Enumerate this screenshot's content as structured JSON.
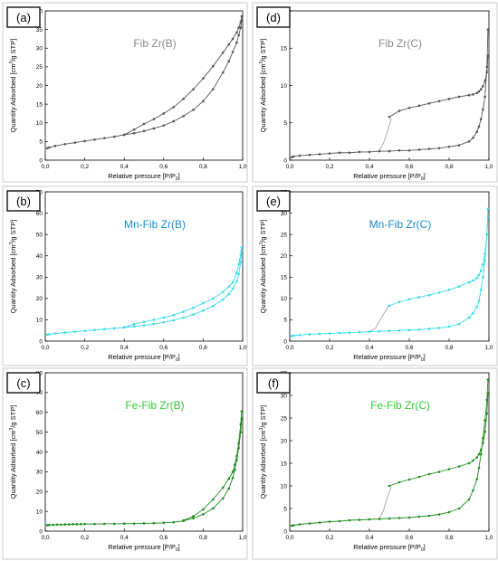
{
  "colors": {
    "a": "#555555",
    "b": "#33dde8",
    "c": "#1e8c1e",
    "d": "#555555",
    "e": "#33dde8",
    "f": "#1e8c1e",
    "title_a": "#8a8a8a",
    "title_b": "#1a8ccc",
    "title_c": "#33cc33",
    "axis": "#000000",
    "guide": "#a0a0a0"
  },
  "xlabel_main": "Relative pressure [P/P",
  "xlabel_sub": "0",
  "xlabel_end": "]",
  "ylabel_a": "Quantity Adsorbed [cm",
  "ylabel_b": "3",
  "ylabel_c": "/g STP]",
  "chart_data": [
    {
      "id": "a",
      "type": "line",
      "panel_label": "(a)",
      "title": "Fib Zr(B)",
      "xlim": [
        0,
        1.0
      ],
      "ylim": [
        0,
        40
      ],
      "xticks": [
        "0,0",
        "0,2",
        "0,4",
        "0,6",
        "0,8",
        "1,0"
      ],
      "yticks": [
        "0",
        "5",
        "10",
        "15",
        "20",
        "25",
        "30",
        "35",
        "40"
      ],
      "series": [
        {
          "x": [
            0.01,
            0.02,
            0.05,
            0.1,
            0.15,
            0.2,
            0.25,
            0.3,
            0.35,
            0.4,
            0.45,
            0.5,
            0.55,
            0.6,
            0.65,
            0.7,
            0.75,
            0.8,
            0.85,
            0.9,
            0.93,
            0.95,
            0.97,
            0.98,
            0.99,
            0.995
          ],
          "y": [
            3.2,
            3.4,
            3.8,
            4.3,
            4.7,
            5.1,
            5.5,
            5.9,
            6.3,
            6.8,
            7.2,
            7.8,
            8.5,
            9.3,
            10.4,
            11.8,
            13.5,
            15.8,
            19.0,
            23.5,
            26.5,
            29.0,
            31.5,
            33.5,
            35.5,
            37.5
          ]
        },
        {
          "x": [
            0.995,
            0.99,
            0.98,
            0.97,
            0.95,
            0.93,
            0.9,
            0.85,
            0.8,
            0.75,
            0.7,
            0.65,
            0.6,
            0.55,
            0.5,
            0.45,
            0.4
          ],
          "y": [
            38.5,
            37.0,
            35.5,
            34.2,
            32.5,
            31.0,
            28.8,
            25.2,
            21.9,
            19.0,
            16.4,
            14.2,
            12.5,
            11.0,
            9.7,
            8.2,
            6.8
          ]
        }
      ]
    },
    {
      "id": "b",
      "type": "line",
      "panel_label": "(b)",
      "title": "Mn-Fib Zr(B)",
      "xlim": [
        0,
        1.0
      ],
      "ylim": [
        0,
        70
      ],
      "xticks": [
        "0,0",
        "0,2",
        "0,4",
        "0,6",
        "0,8",
        "1,0"
      ],
      "yticks": [
        "0",
        "10",
        "20",
        "30",
        "40",
        "50",
        "60",
        "70"
      ],
      "series": [
        {
          "x": [
            0.01,
            0.02,
            0.05,
            0.1,
            0.15,
            0.2,
            0.25,
            0.3,
            0.35,
            0.4,
            0.45,
            0.5,
            0.55,
            0.6,
            0.65,
            0.7,
            0.75,
            0.8,
            0.85,
            0.9,
            0.93,
            0.95,
            0.97,
            0.98,
            0.99,
            0.995
          ],
          "y": [
            3.0,
            3.2,
            3.6,
            4.0,
            4.4,
            4.8,
            5.2,
            5.6,
            6.0,
            6.4,
            6.9,
            7.4,
            8.0,
            8.8,
            9.8,
            11.0,
            12.5,
            14.3,
            16.5,
            19.5,
            22.0,
            24.5,
            28.0,
            31.5,
            37.0,
            42.5
          ]
        },
        {
          "x": [
            0.995,
            0.99,
            0.98,
            0.97,
            0.95,
            0.93,
            0.9,
            0.85,
            0.8,
            0.75,
            0.7,
            0.65,
            0.6,
            0.55,
            0.5,
            0.45,
            0.4
          ],
          "y": [
            44.0,
            40.5,
            36.0,
            32.0,
            27.5,
            25.5,
            23.0,
            20.0,
            17.8,
            15.6,
            13.8,
            12.2,
            11.0,
            10.0,
            9.0,
            8.0,
            6.4
          ]
        }
      ]
    },
    {
      "id": "c",
      "type": "line",
      "panel_label": "(c)",
      "title": "Fe-Fib Zr(B)",
      "xlim": [
        0,
        1.0
      ],
      "ylim": [
        0,
        80
      ],
      "xticks": [
        "0,0",
        "0,2",
        "0,4",
        "0,6",
        "0,8",
        "1,0"
      ],
      "yticks": [
        "0",
        "10",
        "20",
        "30",
        "40",
        "50",
        "60",
        "70",
        "80"
      ],
      "series": [
        {
          "x": [
            0.01,
            0.02,
            0.04,
            0.06,
            0.08,
            0.1,
            0.12,
            0.14,
            0.16,
            0.18,
            0.2,
            0.25,
            0.3,
            0.35,
            0.4,
            0.45,
            0.5,
            0.55,
            0.6,
            0.65,
            0.7,
            0.75,
            0.8,
            0.85,
            0.9,
            0.93,
            0.95,
            0.96,
            0.97,
            0.98,
            0.99,
            0.995
          ],
          "y": [
            3.0,
            3.1,
            3.2,
            3.3,
            3.3,
            3.4,
            3.4,
            3.5,
            3.5,
            3.5,
            3.6,
            3.6,
            3.7,
            3.7,
            3.8,
            3.8,
            3.9,
            4.0,
            4.2,
            4.5,
            5.2,
            6.5,
            8.5,
            11.5,
            16.5,
            21.5,
            27.0,
            31.0,
            36.0,
            42.0,
            50.0,
            57.0
          ]
        },
        {
          "x": [
            0.995,
            0.99,
            0.98,
            0.97,
            0.96,
            0.95,
            0.93,
            0.9,
            0.85,
            0.8,
            0.75,
            0.7
          ],
          "y": [
            60.5,
            54.0,
            44.5,
            38.0,
            33.5,
            30.0,
            26.5,
            22.0,
            16.0,
            11.0,
            7.5,
            5.4
          ]
        }
      ]
    },
    {
      "id": "d",
      "type": "line",
      "panel_label": "(d)",
      "title": "Fib Zr(C)",
      "xlim": [
        0,
        1.0
      ],
      "ylim": [
        0,
        20
      ],
      "xticks": [
        "0,0",
        "0,2",
        "0,4",
        "0,6",
        "0,8",
        "1,0"
      ],
      "yticks": [
        "0",
        "5",
        "10",
        "15",
        "20"
      ],
      "series": [
        {
          "x": [
            0.01,
            0.02,
            0.05,
            0.1,
            0.15,
            0.2,
            0.25,
            0.3,
            0.35,
            0.4,
            0.45,
            0.5,
            0.55,
            0.6,
            0.65,
            0.7,
            0.75,
            0.8,
            0.85,
            0.9,
            0.92,
            0.94,
            0.95,
            0.96,
            0.97,
            0.98,
            0.99,
            0.995
          ],
          "y": [
            0.4,
            0.5,
            0.6,
            0.7,
            0.8,
            0.9,
            1.0,
            1.0,
            1.1,
            1.1,
            1.2,
            1.2,
            1.3,
            1.3,
            1.4,
            1.5,
            1.6,
            1.8,
            2.0,
            2.5,
            3.0,
            3.8,
            4.5,
            5.5,
            6.8,
            8.5,
            12.5,
            17.5
          ]
        },
        {
          "x": [
            0.995,
            0.99,
            0.98,
            0.97,
            0.96,
            0.95,
            0.94,
            0.92,
            0.9,
            0.85,
            0.8,
            0.75,
            0.7,
            0.65,
            0.6,
            0.55,
            0.5
          ],
          "y": [
            14.0,
            11.8,
            10.6,
            9.9,
            9.5,
            9.2,
            9.0,
            8.8,
            8.7,
            8.5,
            8.2,
            7.9,
            7.6,
            7.3,
            7.0,
            6.6,
            5.8
          ]
        }
      ],
      "guide": {
        "x": [
          0.45,
          0.47,
          0.49,
          0.51
        ],
        "y": [
          1.4,
          2.2,
          3.8,
          5.6
        ]
      }
    },
    {
      "id": "e",
      "type": "line",
      "panel_label": "(e)",
      "title": "Mn-Fib Zr(C)",
      "xlim": [
        0,
        1.0
      ],
      "ylim": [
        0,
        35
      ],
      "xticks": [
        "0,0",
        "0,2",
        "0,4",
        "0,6",
        "0,8",
        "1,0"
      ],
      "yticks": [
        "0",
        "5",
        "10",
        "15",
        "20",
        "25",
        "30",
        "35"
      ],
      "series": [
        {
          "x": [
            0.01,
            0.02,
            0.05,
            0.1,
            0.15,
            0.2,
            0.25,
            0.3,
            0.35,
            0.4,
            0.45,
            0.5,
            0.55,
            0.6,
            0.65,
            0.7,
            0.75,
            0.8,
            0.85,
            0.9,
            0.92,
            0.94,
            0.95,
            0.96,
            0.97,
            0.98,
            0.99,
            0.995
          ],
          "y": [
            1.2,
            1.3,
            1.4,
            1.6,
            1.7,
            1.8,
            1.9,
            2.0,
            2.1,
            2.2,
            2.3,
            2.4,
            2.5,
            2.6,
            2.7,
            2.9,
            3.1,
            3.4,
            4.0,
            5.5,
            6.5,
            8.0,
            9.5,
            12.0,
            15.0,
            19.0,
            25.0,
            31.0
          ]
        },
        {
          "x": [
            0.995,
            0.99,
            0.98,
            0.97,
            0.96,
            0.95,
            0.94,
            0.92,
            0.9,
            0.85,
            0.8,
            0.75,
            0.7,
            0.65,
            0.6,
            0.55,
            0.5
          ],
          "y": [
            29.0,
            25.0,
            20.5,
            18.0,
            16.5,
            15.5,
            14.8,
            14.2,
            13.8,
            12.8,
            12.0,
            11.4,
            10.8,
            10.3,
            9.8,
            9.2,
            8.3
          ]
        }
      ],
      "guide": {
        "x": [
          0.4,
          0.43,
          0.46,
          0.5
        ],
        "y": [
          2.2,
          3.0,
          5.5,
          8.5
        ]
      }
    },
    {
      "id": "f",
      "type": "line",
      "panel_label": "(f)",
      "title": "Fe-Fib Zr(C)",
      "xlim": [
        0,
        1.0
      ],
      "ylim": [
        0,
        35
      ],
      "xticks": [
        "0,0",
        "0,2",
        "0,4",
        "0,6",
        "0,8",
        "1,0"
      ],
      "yticks": [
        "0",
        "5",
        "10",
        "15",
        "20",
        "25",
        "30",
        "35"
      ],
      "series": [
        {
          "x": [
            0.01,
            0.02,
            0.05,
            0.1,
            0.15,
            0.2,
            0.25,
            0.3,
            0.35,
            0.4,
            0.45,
            0.5,
            0.55,
            0.6,
            0.65,
            0.7,
            0.75,
            0.8,
            0.85,
            0.9,
            0.92,
            0.94,
            0.95,
            0.96,
            0.97,
            0.98,
            0.99,
            0.995
          ],
          "y": [
            1.2,
            1.3,
            1.5,
            1.7,
            1.9,
            2.1,
            2.2,
            2.4,
            2.5,
            2.6,
            2.7,
            2.8,
            2.9,
            3.0,
            3.2,
            3.4,
            3.7,
            4.2,
            5.0,
            7.0,
            9.0,
            11.5,
            14.0,
            17.0,
            20.5,
            24.5,
            29.0,
            33.5
          ]
        },
        {
          "x": [
            0.995,
            0.99,
            0.98,
            0.97,
            0.96,
            0.95,
            0.94,
            0.92,
            0.9,
            0.85,
            0.8,
            0.75,
            0.7,
            0.65,
            0.6,
            0.55,
            0.5
          ],
          "y": [
            30.5,
            26.0,
            22.0,
            19.5,
            18.0,
            17.0,
            16.3,
            15.6,
            15.0,
            14.3,
            13.7,
            13.1,
            12.6,
            12.0,
            11.4,
            10.8,
            10.0
          ]
        }
      ],
      "guide": {
        "x": [
          0.45,
          0.47,
          0.49,
          0.51
        ],
        "y": [
          2.8,
          4.5,
          7.5,
          9.8
        ]
      }
    }
  ]
}
